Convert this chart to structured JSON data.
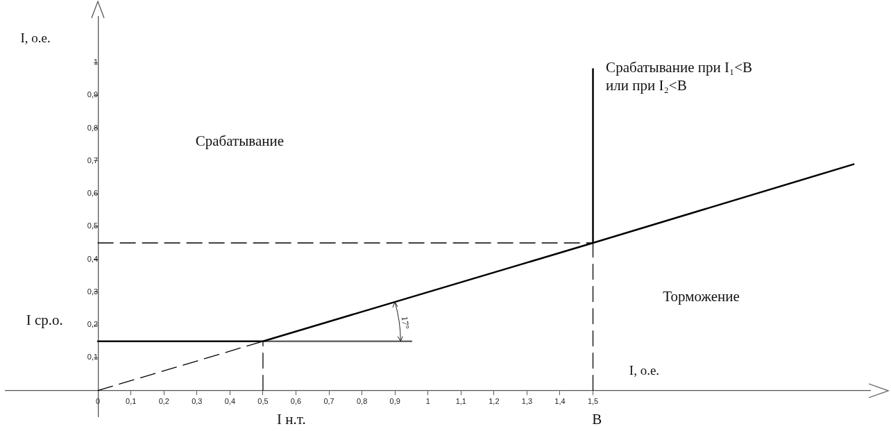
{
  "chart_data": {
    "type": "line",
    "xlabel": "I, о.е.",
    "ylabel": "I, о.е.",
    "xlim": [
      -0.28,
      2.34
    ],
    "ylim": [
      -0.08,
      1.14
    ],
    "xticks": [
      0,
      {
        "value": 0.1,
        "label": "0,1"
      },
      {
        "value": 0.2,
        "label": "0,2"
      },
      {
        "value": 0.3,
        "label": "0,3"
      },
      {
        "value": 0.4,
        "label": "0,4"
      },
      {
        "value": 0.5,
        "label": "0,5"
      },
      {
        "value": 0.6,
        "label": "0,6"
      },
      {
        "value": 0.7,
        "label": "0,7"
      },
      {
        "value": 0.8,
        "label": "0,8"
      },
      {
        "value": 0.9,
        "label": "0,9"
      },
      1,
      {
        "value": 1.1,
        "label": "1,1"
      },
      {
        "value": 1.2,
        "label": "1,2"
      },
      {
        "value": 1.3,
        "label": "1,3"
      },
      {
        "value": 1.4,
        "label": "1,4"
      },
      {
        "value": 1.5,
        "label": "1,5"
      }
    ],
    "yticks": [
      {
        "value": 0.1,
        "label": "0,1"
      },
      {
        "value": 0.2,
        "label": "0,2"
      },
      {
        "value": 0.3,
        "label": "0,3"
      },
      {
        "value": 0.4,
        "label": "0,4"
      },
      {
        "value": 0.5,
        "label": "0,5"
      },
      {
        "value": 0.6,
        "label": "0,6"
      },
      {
        "value": 0.7,
        "label": "0,7"
      },
      {
        "value": 0.8,
        "label": "0,8"
      },
      {
        "value": 0.9,
        "label": "0,9"
      },
      1
    ],
    "grid": false,
    "legend": false,
    "marker": "none",
    "series": [
      {
        "color": "#000000",
        "line_style": "solid",
        "x": [
          0,
          0.5,
          1.5,
          2.29
        ],
        "values": [
          0.15,
          0.15,
          0.45,
          0.69
        ]
      },
      {
        "color": "#000000",
        "line_style": "solid",
        "x": [
          1.5,
          1.5
        ],
        "values": [
          0.45,
          0.98
        ]
      },
      {
        "color": "#666666",
        "line_style": "solid",
        "x": [
          0.5,
          0.95
        ],
        "values": [
          0.15,
          0.15
        ]
      },
      {
        "color": "#000000",
        "line_style": "dashed",
        "x": [
          0,
          0.5
        ],
        "values": [
          0,
          0.15
        ]
      },
      {
        "color": "#000000",
        "line_style": "dashed",
        "x": [
          0,
          1.5
        ],
        "values": [
          0.45,
          0.45
        ]
      },
      {
        "color": "#000000",
        "line_style": "dashed",
        "x": [
          0.5,
          0.5
        ],
        "values": [
          0,
          0.15
        ]
      },
      {
        "color": "#000000",
        "line_style": "dashed",
        "x": [
          1.5,
          1.5
        ],
        "values": [
          0,
          0.45
        ]
      }
    ],
    "annotations": [
      "Срабатывание",
      "Срабатывание при I₁<B\nили при I₂<B",
      "Торможение",
      "I ср.о.",
      "I н.т.",
      "B",
      {
        "text": "17°",
        "x": 0.9,
        "y": 0.27
      }
    ]
  }
}
